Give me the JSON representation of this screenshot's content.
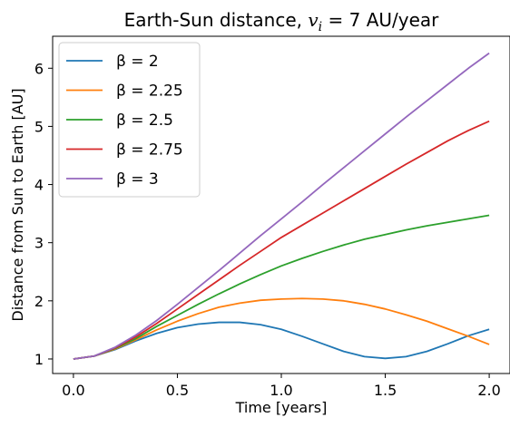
{
  "chart_data": {
    "type": "line",
    "title": "Earth-Sun distance, v_i = 7 AU/year",
    "title_parts": {
      "prefix": "Earth-Sun distance, ",
      "var": "v",
      "sub": "i",
      "suffix": " = 7 AU/year"
    },
    "xlabel": "Time [years]",
    "ylabel": "Distance from Sun to Earth [AU]",
    "xlim": [
      -0.1,
      2.1
    ],
    "ylim": [
      0.75,
      6.55
    ],
    "xticks": [
      0.0,
      0.5,
      1.0,
      1.5,
      2.0
    ],
    "xtick_labels": [
      "0.0",
      "0.5",
      "1.0",
      "1.5",
      "2.0"
    ],
    "yticks": [
      1,
      2,
      3,
      4,
      5,
      6
    ],
    "ytick_labels": [
      "1",
      "2",
      "3",
      "4",
      "5",
      "6"
    ],
    "grid": false,
    "legend_position": "top-left",
    "x": [
      0.0,
      0.1,
      0.2,
      0.3,
      0.4,
      0.5,
      0.6,
      0.7,
      0.8,
      0.9,
      1.0,
      1.1,
      1.2,
      1.3,
      1.4,
      1.5,
      1.6,
      1.7,
      1.8,
      1.9,
      2.0
    ],
    "series": [
      {
        "name": "β = 2",
        "color": "#1f77b4",
        "values": [
          1.0,
          1.05,
          1.16,
          1.31,
          1.44,
          1.54,
          1.6,
          1.63,
          1.63,
          1.59,
          1.51,
          1.39,
          1.26,
          1.13,
          1.04,
          1.01,
          1.04,
          1.13,
          1.26,
          1.4,
          1.51
        ]
      },
      {
        "name": "β = 2.25",
        "color": "#ff7f0e",
        "values": [
          1.0,
          1.05,
          1.17,
          1.33,
          1.5,
          1.65,
          1.78,
          1.89,
          1.96,
          2.01,
          2.03,
          2.04,
          2.03,
          2.0,
          1.94,
          1.86,
          1.76,
          1.65,
          1.52,
          1.39,
          1.25
        ]
      },
      {
        "name": "β = 2.5",
        "color": "#2ca02c",
        "values": [
          1.0,
          1.05,
          1.18,
          1.35,
          1.56,
          1.75,
          1.94,
          2.12,
          2.29,
          2.45,
          2.6,
          2.73,
          2.85,
          2.96,
          3.06,
          3.14,
          3.22,
          3.29,
          3.35,
          3.41,
          3.47
        ]
      },
      {
        "name": "β = 2.75",
        "color": "#d62728",
        "values": [
          1.0,
          1.05,
          1.19,
          1.38,
          1.61,
          1.86,
          2.11,
          2.36,
          2.61,
          2.85,
          3.09,
          3.3,
          3.51,
          3.72,
          3.93,
          4.14,
          4.35,
          4.55,
          4.75,
          4.93,
          5.09
        ]
      },
      {
        "name": "β = 3",
        "color": "#9467bd",
        "values": [
          1.0,
          1.05,
          1.2,
          1.41,
          1.66,
          1.94,
          2.23,
          2.52,
          2.82,
          3.12,
          3.41,
          3.7,
          4.0,
          4.29,
          4.58,
          4.87,
          5.16,
          5.44,
          5.72,
          6.0,
          6.26
        ]
      }
    ]
  }
}
